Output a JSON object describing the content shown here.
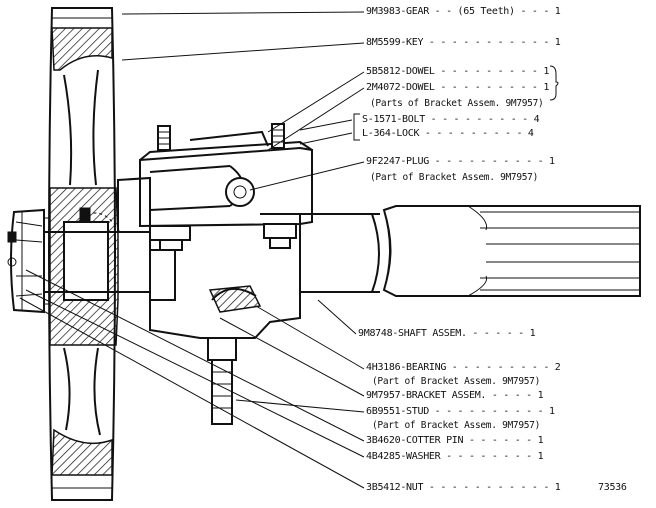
{
  "labels": {
    "gear": "9M3983-GEAR - - (65 Teeth) - - - 1",
    "key": "8M5599-KEY - - - - - - - - - - - 1",
    "dowel1": "5B5812-DOWEL - - - - - - - - - 1",
    "dowel2": "2M4072-DOWEL - - - - - - - - - 1",
    "dowel_note": "(Parts of Bracket Assem. 9M7957)",
    "bolt": "S-1571-BOLT - - - - - - - - - 4",
    "lock": "L-364-LOCK - - - - - - - - - 4",
    "plug": "9F2247-PLUG - - - - - - - - - - 1",
    "plug_note": "(Part of Bracket Assem. 9M7957)",
    "shaft": "9M8748-SHAFT ASSEM. - - - - - 1",
    "bearing": "4H3186-BEARING - - - - - - - - - 2",
    "bearing_note": "(Part of Bracket Assem. 9M7957)",
    "bracket": "9M7957-BRACKET ASSEM. - - - - 1",
    "stud": "6B9551-STUD - - - - - - - - - - 1",
    "stud_note": "(Part of Bracket Assem. 9M7957)",
    "cotter": "3B4620-COTTER PIN - - - - - - 1",
    "washer": "4B4285-WASHER - - - - - - - - 1",
    "nut": "3B5412-NUT - - - - - - - - - - - 1",
    "figure_number": "73536"
  }
}
